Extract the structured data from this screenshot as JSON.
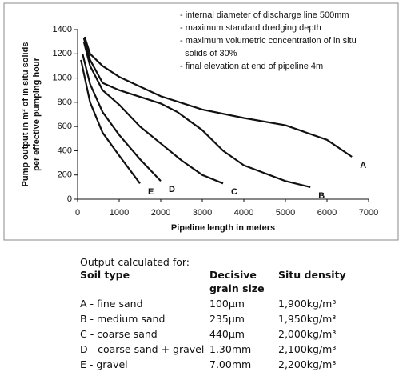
{
  "chart_data": {
    "type": "line",
    "xlabel": "Pipeline length in meters",
    "ylabel": [
      "Pump output in m³ of in situ solids",
      "per effective pumping hour"
    ],
    "annotations": [
      "- internal diameter of discharge line 500mm",
      "- maximum standard dredging depth",
      "- maximum volumetric concentration of in situ",
      "  solids of 30%",
      "- final elevation at end of pipeline 4m"
    ],
    "xlim": [
      0,
      7000
    ],
    "xticks": [
      0,
      1000,
      2000,
      3000,
      4000,
      5000,
      6000,
      7000
    ],
    "ylim": [
      0,
      1400
    ],
    "yticks": [
      0,
      200,
      400,
      600,
      800,
      1000,
      1200,
      1400
    ],
    "grid": false,
    "series": [
      {
        "name": "A",
        "color": "#111111",
        "x": [
          170,
          300,
          600,
          1000,
          2000,
          3000,
          4000,
          5000,
          6000,
          6600
        ],
        "values": [
          1340,
          1200,
          1100,
          1010,
          850,
          740,
          670,
          610,
          490,
          350
        ]
      },
      {
        "name": "B",
        "color": "#111111",
        "x": [
          150,
          300,
          600,
          1000,
          2000,
          2400,
          3000,
          3500,
          4000,
          5000,
          5600
        ],
        "values": [
          1330,
          1150,
          960,
          900,
          790,
          720,
          570,
          400,
          280,
          150,
          100
        ]
      },
      {
        "name": "C",
        "color": "#111111",
        "x": [
          150,
          300,
          600,
          1000,
          1500,
          2000,
          2500,
          3000,
          3500
        ],
        "values": [
          1300,
          1100,
          900,
          780,
          600,
          460,
          320,
          200,
          130
        ]
      },
      {
        "name": "D",
        "color": "#111111",
        "x": [
          120,
          300,
          600,
          1000,
          1500,
          2000
        ],
        "values": [
          1200,
          950,
          720,
          530,
          330,
          150
        ]
      },
      {
        "name": "E",
        "color": "#111111",
        "x": [
          80,
          300,
          600,
          1000,
          1500
        ],
        "values": [
          1150,
          800,
          550,
          360,
          130
        ]
      }
    ]
  },
  "table": {
    "caption": "Output calculated for:",
    "header": [
      "Soil type",
      "Decisive grain size",
      "Situ density"
    ],
    "rows": [
      [
        "A - fine sand",
        "100μm",
        "1,900kg/m³"
      ],
      [
        "B - medium sand",
        "235μm",
        "1,950kg/m³"
      ],
      [
        "C - coarse sand",
        "440μm",
        "2,000kg/m³"
      ],
      [
        "D - coarse sand + gravel",
        "1.30mm",
        "2,100kg/m³"
      ],
      [
        "E - gravel",
        "7.00mm",
        "2,200kg/m³"
      ]
    ]
  }
}
